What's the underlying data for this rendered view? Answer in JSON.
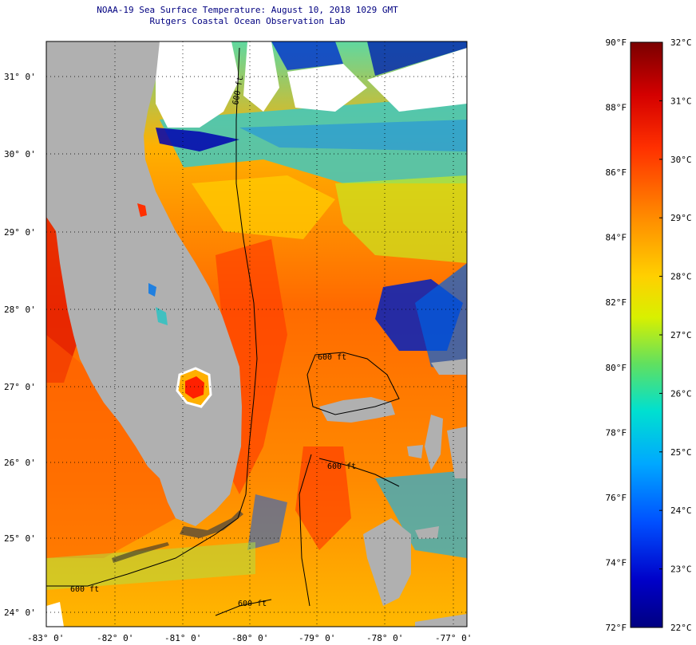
{
  "header": {
    "title_line1": "NOAA-19 Sea Surface Temperature:  August 10, 2018 1029 GMT",
    "title_line2": "Rutgers Coastal Ocean Observation Lab"
  },
  "map": {
    "lat_labels": [
      "31° 0'",
      "30° 0'",
      "29° 0'",
      "28° 0'",
      "27° 0'",
      "26° 0'",
      "25° 0'",
      "24° 0'"
    ],
    "lon_labels": [
      "-83° 0'",
      "-82° 0'",
      "-81° 0'",
      "-80° 0'",
      "-79° 0'",
      "-78° 0'",
      "-77° 0'"
    ],
    "contour_labels": [
      "600 ft",
      "600 ft",
      "600 ft",
      "600 ft",
      "600 ft"
    ],
    "land_color": "#b0b0b0",
    "cloud_color": "#ffffff"
  },
  "colorbar": {
    "fahrenheit_labels": [
      "90°F",
      "88°F",
      "86°F",
      "84°F",
      "82°F",
      "80°F",
      "78°F",
      "76°F",
      "74°F",
      "72°F"
    ],
    "celsius_labels": [
      "32°C",
      "31°C",
      "30°C",
      "29°C",
      "28°C",
      "27°C",
      "26°C",
      "25°C",
      "24°C",
      "23°C",
      "22°C"
    ],
    "colors": [
      "#7a0000",
      "#d40000",
      "#ff3000",
      "#ff8c00",
      "#ffd000",
      "#d8f000",
      "#60e060",
      "#00e0d0",
      "#00a8ff",
      "#0050ff",
      "#0000c8",
      "#000080"
    ]
  }
}
